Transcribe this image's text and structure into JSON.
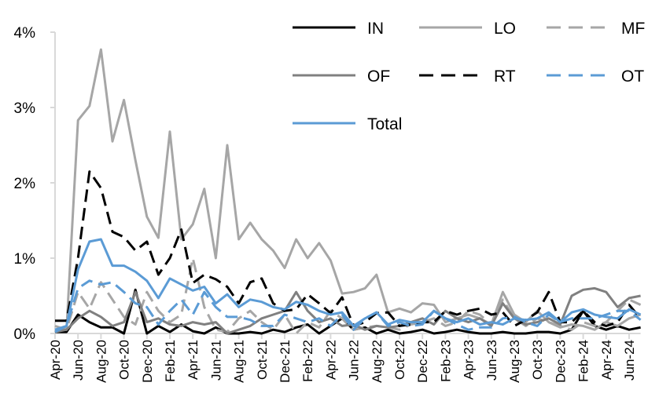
{
  "chart_data": {
    "type": "line",
    "title": "",
    "xlabel": "",
    "ylabel": "",
    "ylim": [
      0,
      4
    ],
    "y_ticks": [
      "0%",
      "1%",
      "2%",
      "3%",
      "4%"
    ],
    "y_unit": "%",
    "grid": false,
    "legend_position": "top-right",
    "x": [
      "Apr-20",
      "May-20",
      "Jun-20",
      "Jul-20",
      "Aug-20",
      "Sep-20",
      "Oct-20",
      "Nov-20",
      "Dec-20",
      "Jan-21",
      "Feb-21",
      "Mar-21",
      "Apr-21",
      "May-21",
      "Jun-21",
      "Jul-21",
      "Aug-21",
      "Sep-21",
      "Oct-21",
      "Nov-21",
      "Dec-21",
      "Jan-22",
      "Feb-22",
      "Mar-22",
      "Apr-22",
      "May-22",
      "Jun-22",
      "Jul-22",
      "Aug-22",
      "Sep-22",
      "Oct-22",
      "Nov-22",
      "Dec-22",
      "Jan-23",
      "Feb-23",
      "Mar-23",
      "Apr-23",
      "May-23",
      "Jun-23",
      "Jul-23",
      "Aug-23",
      "Sep-23",
      "Oct-23",
      "Nov-23",
      "Dec-23",
      "Jan-24",
      "Feb-24",
      "Mar-24",
      "Apr-24",
      "May-24",
      "Jun-24",
      "Jul-24"
    ],
    "x_tick_labels": [
      "Apr-20",
      "Jun-20",
      "Aug-20",
      "Oct-20",
      "Dec-20",
      "Feb-21",
      "Apr-21",
      "Jun-21",
      "Aug-21",
      "Oct-21",
      "Dec-21",
      "Feb-22",
      "Apr-22",
      "Jun-22",
      "Aug-22",
      "Oct-22",
      "Dec-22",
      "Feb-23",
      "Apr-23",
      "Jun-23",
      "Aug-23",
      "Oct-23",
      "Dec-23",
      "Feb-24",
      "Apr-24",
      "Jun-24"
    ],
    "series": [
      {
        "name": "IN",
        "color": "#000000",
        "dash": "solid",
        "values": [
          0.02,
          0.02,
          0.25,
          0.15,
          0.08,
          0.08,
          0.0,
          0.58,
          0.0,
          0.1,
          0.02,
          0.12,
          0.03,
          0.0,
          0.08,
          0.0,
          0.0,
          0.02,
          0.0,
          0.05,
          0.02,
          0.08,
          0.12,
          0.0,
          0.1,
          0.2,
          0.05,
          0.08,
          0.0,
          0.05,
          0.0,
          0.02,
          0.05,
          0.0,
          0.02,
          0.05,
          0.02,
          0.0,
          0.0,
          0.02,
          0.0,
          0.0,
          0.02,
          0.02,
          0.0,
          0.05,
          0.3,
          0.1,
          0.05,
          0.1,
          0.05,
          0.08
        ]
      },
      {
        "name": "LO",
        "color": "#A6A6A6",
        "dash": "solid",
        "values": [
          0.05,
          0.05,
          2.83,
          3.02,
          3.77,
          2.55,
          3.1,
          2.3,
          1.55,
          1.27,
          2.68,
          1.25,
          1.45,
          1.92,
          1.0,
          2.5,
          1.25,
          1.47,
          1.25,
          1.1,
          0.87,
          1.25,
          1.0,
          1.2,
          0.97,
          0.53,
          0.55,
          0.6,
          0.78,
          0.28,
          0.33,
          0.28,
          0.4,
          0.38,
          0.15,
          0.2,
          0.25,
          0.2,
          0.12,
          0.55,
          0.25,
          0.15,
          0.3,
          0.15,
          0.08,
          0.12,
          0.1,
          0.05,
          0.15,
          0.1,
          0.2,
          0.25
        ]
      },
      {
        "name": "MF",
        "color": "#A6A6A6",
        "dash": "dashed",
        "values": [
          0.1,
          0.05,
          0.55,
          0.33,
          0.68,
          0.45,
          0.22,
          0.12,
          0.55,
          0.3,
          0.15,
          0.25,
          1.0,
          0.35,
          0.05,
          0.02,
          0.2,
          0.3,
          0.15,
          0.05,
          0.25,
          0.0,
          0.15,
          0.08,
          0.3,
          0.2,
          0.05,
          0.08,
          0.1,
          0.08,
          0.05,
          0.12,
          0.15,
          0.2,
          0.1,
          0.15,
          0.3,
          0.25,
          0.12,
          0.45,
          0.2,
          0.1,
          0.2,
          0.15,
          0.1,
          0.05,
          0.15,
          0.1,
          0.15,
          0.3,
          0.45,
          0.38
        ]
      },
      {
        "name": "OF",
        "color": "#808080",
        "dash": "solid",
        "values": [
          0.02,
          0.05,
          0.2,
          0.3,
          0.22,
          0.1,
          0.15,
          0.55,
          0.15,
          0.2,
          0.12,
          0.1,
          0.15,
          0.12,
          0.15,
          0.0,
          0.05,
          0.1,
          0.2,
          0.25,
          0.3,
          0.55,
          0.3,
          0.15,
          0.2,
          0.1,
          0.12,
          0.05,
          0.1,
          0.08,
          0.1,
          0.15,
          0.2,
          0.12,
          0.3,
          0.2,
          0.15,
          0.2,
          0.1,
          0.4,
          0.2,
          0.12,
          0.15,
          0.2,
          0.12,
          0.5,
          0.58,
          0.6,
          0.55,
          0.35,
          0.47,
          0.5
        ]
      },
      {
        "name": "RT",
        "color": "#000000",
        "dash": "dashed",
        "values": [
          0.17,
          0.17,
          1.0,
          2.15,
          1.93,
          1.35,
          1.28,
          1.1,
          1.22,
          0.78,
          1.0,
          1.38,
          0.67,
          0.78,
          0.72,
          0.62,
          0.4,
          0.68,
          0.73,
          0.4,
          0.3,
          0.32,
          0.52,
          0.4,
          0.27,
          0.48,
          0.1,
          0.15,
          0.27,
          0.28,
          0.1,
          0.12,
          0.15,
          0.15,
          0.3,
          0.25,
          0.3,
          0.33,
          0.25,
          0.28,
          0.1,
          0.18,
          0.28,
          0.55,
          0.15,
          0.15,
          0.3,
          0.15,
          0.1,
          0.15,
          0.38,
          0.2
        ]
      },
      {
        "name": "OT",
        "color": "#5B9BD5",
        "dash": "dashed",
        "values": [
          0.02,
          0.1,
          0.6,
          0.7,
          0.65,
          0.68,
          0.55,
          0.4,
          0.35,
          0.12,
          0.3,
          0.45,
          0.25,
          0.55,
          0.35,
          0.22,
          0.22,
          0.18,
          0.1,
          0.1,
          0.25,
          0.2,
          0.15,
          0.2,
          0.1,
          0.25,
          0.05,
          0.2,
          0.28,
          0.1,
          0.15,
          0.1,
          0.12,
          0.3,
          0.2,
          0.12,
          0.05,
          0.08,
          0.08,
          0.2,
          0.22,
          0.15,
          0.1,
          0.25,
          0.15,
          0.2,
          0.2,
          0.2,
          0.25,
          0.3,
          0.3,
          0.18
        ]
      },
      {
        "name": "Total",
        "color": "#5B9BD5",
        "dash": "solid",
        "values": [
          0.05,
          0.1,
          0.85,
          1.22,
          1.25,
          0.9,
          0.9,
          0.82,
          0.7,
          0.47,
          0.73,
          0.65,
          0.57,
          0.62,
          0.4,
          0.52,
          0.35,
          0.45,
          0.42,
          0.35,
          0.32,
          0.42,
          0.38,
          0.3,
          0.25,
          0.28,
          0.1,
          0.2,
          0.28,
          0.12,
          0.18,
          0.15,
          0.15,
          0.3,
          0.2,
          0.15,
          0.2,
          0.12,
          0.15,
          0.12,
          0.2,
          0.18,
          0.2,
          0.28,
          0.15,
          0.28,
          0.32,
          0.25,
          0.22,
          0.2,
          0.32,
          0.25
        ]
      }
    ]
  }
}
